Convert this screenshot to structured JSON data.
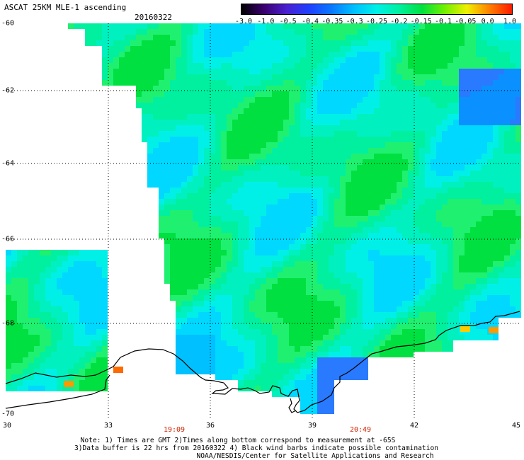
{
  "header": {
    "title": "ASCAT 25KM MLE-1 ascending",
    "date": "20160322"
  },
  "colorbar": {
    "labels": [
      "-3.0",
      "-1.0",
      "-0.5",
      "-0.4",
      "-0.35",
      "-0.3",
      "-0.25",
      "-0.2",
      "-0.15",
      "-0.1",
      "-0.05",
      "0.0",
      "1.0"
    ],
    "stops": [
      "#000000",
      "#3a0070",
      "#4a20d0",
      "#2040ff",
      "#0a78ff",
      "#00c0ff",
      "#00f0e8",
      "#00f0a0",
      "#00e040",
      "#70f000",
      "#f0f000",
      "#ff8000",
      "#ff1a00"
    ]
  },
  "map": {
    "lat_labels": [
      "-60",
      "-62",
      "-64",
      "-66",
      "-68",
      "-70"
    ],
    "lon_labels": [
      "30",
      "33",
      "36",
      "39",
      "42",
      "45"
    ],
    "times": [
      "19:09",
      "20:49"
    ]
  },
  "footer": {
    "note1": "Note: 1) Times are GMT 2)Times along bottom correspond to measurement at -65S",
    "note2": "3)Data buffer is 22 hrs from 20160322 4) Black wind barbs indicate possible contamination",
    "credit": "NOAA/NESDIS/Center for Satellite Applications and Research"
  }
}
